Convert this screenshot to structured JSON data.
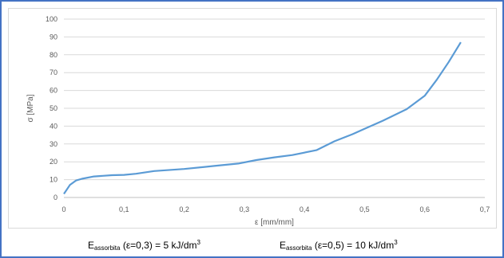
{
  "chart_data": {
    "type": "line",
    "xlabel": "ε [mm/mm]",
    "ylabel": "σ [MPa]",
    "xlim": [
      0,
      0.7
    ],
    "ylim": [
      0,
      100
    ],
    "x_ticks": [
      "0",
      "0,1",
      "0,2",
      "0,3",
      "0,4",
      "0,5",
      "0,6",
      "0,7"
    ],
    "y_ticks": [
      "0",
      "10",
      "20",
      "30",
      "40",
      "50",
      "60",
      "70",
      "80",
      "90",
      "100"
    ],
    "grid": "horizontal",
    "series_color": "#5b9bd5",
    "series": [
      {
        "x": [
          0,
          0.01,
          0.02,
          0.03,
          0.05,
          0.08,
          0.1,
          0.12,
          0.15,
          0.2,
          0.25,
          0.29,
          0.32,
          0.35,
          0.38,
          0.42,
          0.45,
          0.48,
          0.5,
          0.53,
          0.57,
          0.6,
          0.62,
          0.64,
          0.66
        ],
        "y": [
          2,
          7,
          9.5,
          10.5,
          11.8,
          12.5,
          12.7,
          13.3,
          14.8,
          16,
          17.7,
          19,
          21,
          22.5,
          23.8,
          26.5,
          31.5,
          35.5,
          38.5,
          43,
          49.5,
          57,
          66,
          76,
          87
        ]
      }
    ]
  },
  "captions": {
    "left": {
      "main": "E",
      "sub": "assorbita",
      "rest": " (ε=0,3) = 5 kJ/dm",
      "sup": "3"
    },
    "right": {
      "main": "E",
      "sub": "assorbita",
      "rest": " (ε=0,5) = 10 kJ/dm",
      "sup": "3"
    }
  }
}
